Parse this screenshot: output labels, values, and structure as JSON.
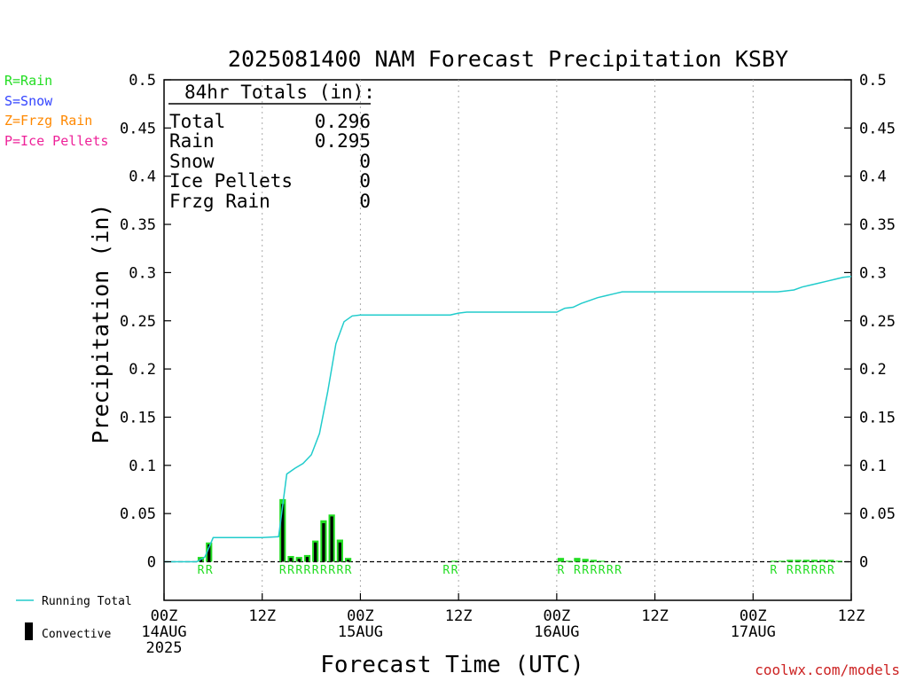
{
  "chart_data": {
    "type": "bar",
    "title": "2025081400 NAM Forecast Precipitation KSBY",
    "xlabel": "Forecast Time (UTC)",
    "ylabel": "Precipitation (in)",
    "ylim": [
      -0.04,
      0.5
    ],
    "xlim": [
      0,
      84
    ],
    "y_ticks": [
      "0.5",
      "0.45",
      "0.4",
      "0.35",
      "0.3",
      "0.25",
      "0.2",
      "0.15",
      "0.1",
      "0.05",
      "0"
    ],
    "x_ticks": [
      {
        "hour": 0,
        "l1": "00Z",
        "l2": "14AUG",
        "l3": "2025"
      },
      {
        "hour": 12,
        "l1": "12Z",
        "l2": "",
        "l3": ""
      },
      {
        "hour": 24,
        "l1": "00Z",
        "l2": "15AUG",
        "l3": ""
      },
      {
        "hour": 36,
        "l1": "12Z",
        "l2": "",
        "l3": ""
      },
      {
        "hour": 48,
        "l1": "00Z",
        "l2": "16AUG",
        "l3": ""
      },
      {
        "hour": 60,
        "l1": "12Z",
        "l2": "",
        "l3": ""
      },
      {
        "hour": 72,
        "l1": "00Z",
        "l2": "17AUG",
        "l3": ""
      },
      {
        "hour": 84,
        "l1": "12Z",
        "l2": "",
        "l3": ""
      }
    ],
    "grid": "vertical dotted at 12-hour intervals",
    "legend_ptype": [
      {
        "text": "R=Rain",
        "color": "#22dd22"
      },
      {
        "text": "S=Snow",
        "color": "#3344ff"
      },
      {
        "text": "Z=Frzg Rain",
        "color": "#ff8800"
      },
      {
        "text": "P=Ice Pellets",
        "color": "#ee2299"
      }
    ],
    "legend_bottom": {
      "running_total": "Running Total",
      "convective": "Convective"
    },
    "totals_box": {
      "header": "84hr Totals (in):",
      "rows": [
        {
          "label": "Total",
          "value": "0.296"
        },
        {
          "label": "Rain",
          "value": "0.295"
        },
        {
          "label": "Snow",
          "value": "0"
        },
        {
          "label": "Ice Pellets",
          "value": "0"
        },
        {
          "label": "Frzg Rain",
          "value": "0"
        }
      ]
    },
    "series": [
      {
        "name": "Precipitation",
        "hours": [
          5,
          6,
          15,
          16,
          17,
          18,
          19,
          20,
          21,
          22,
          23,
          36,
          49,
          50,
          51,
          52,
          53,
          54,
          75,
          76,
          77,
          78,
          79,
          80,
          81,
          82,
          83
        ],
        "values": [
          0.005,
          0.02,
          0.065,
          0.006,
          0.005,
          0.007,
          0.022,
          0.043,
          0.049,
          0.023,
          0.004,
          0.001,
          0.004,
          0.001,
          0.004,
          0.003,
          0.002,
          0.001,
          0.001,
          0.001,
          0.002,
          0.002,
          0.002,
          0.002,
          0.002,
          0.002,
          0.001
        ],
        "convective": [
          0.003,
          0.018,
          0.06,
          0.004,
          0.003,
          0.005,
          0.02,
          0.04,
          0.047,
          0.02,
          0.002,
          0,
          0,
          0,
          0,
          0,
          0,
          0,
          0,
          0,
          0,
          0,
          0,
          0,
          0,
          0,
          0
        ]
      },
      {
        "name": "Running Total",
        "hours": [
          0,
          4,
          5,
          6,
          7,
          12,
          14,
          15,
          16,
          17,
          18,
          19,
          20,
          21,
          22,
          23,
          24,
          35,
          36,
          37,
          48,
          49,
          50,
          51,
          52,
          53,
          54,
          55,
          56,
          75,
          76,
          77,
          78,
          79,
          80,
          81,
          82,
          83,
          84
        ],
        "values": [
          0,
          0,
          0.005,
          0.025,
          0.025,
          0.025,
          0.026,
          0.091,
          0.097,
          0.102,
          0.111,
          0.133,
          0.176,
          0.226,
          0.249,
          0.255,
          0.256,
          0.256,
          0.258,
          0.259,
          0.259,
          0.263,
          0.264,
          0.268,
          0.271,
          0.274,
          0.276,
          0.278,
          0.28,
          0.28,
          0.281,
          0.282,
          0.285,
          0.287,
          0.289,
          0.291,
          0.293,
          0.295,
          0.296
        ]
      }
    ],
    "ptype_marks": [
      {
        "hour": 5,
        "text": "R"
      },
      {
        "hour": 6,
        "text": "R"
      },
      {
        "hour": 15,
        "text": "R"
      },
      {
        "hour": 16,
        "text": "R"
      },
      {
        "hour": 17,
        "text": "R"
      },
      {
        "hour": 18,
        "text": "R"
      },
      {
        "hour": 19,
        "text": "R"
      },
      {
        "hour": 20,
        "text": "R"
      },
      {
        "hour": 21,
        "text": "R"
      },
      {
        "hour": 22,
        "text": "R"
      },
      {
        "hour": 23,
        "text": "R"
      },
      {
        "hour": 35,
        "text": "R"
      },
      {
        "hour": 36,
        "text": "R"
      },
      {
        "hour": 49,
        "text": "R"
      },
      {
        "hour": 51,
        "text": "R"
      },
      {
        "hour": 52,
        "text": "R"
      },
      {
        "hour": 53,
        "text": "R"
      },
      {
        "hour": 54,
        "text": "R"
      },
      {
        "hour": 55,
        "text": "R"
      },
      {
        "hour": 56,
        "text": "R"
      },
      {
        "hour": 75,
        "text": "R"
      },
      {
        "hour": 77,
        "text": "R"
      },
      {
        "hour": 78,
        "text": "R"
      },
      {
        "hour": 79,
        "text": "R"
      },
      {
        "hour": 80,
        "text": "R"
      },
      {
        "hour": 81,
        "text": "R"
      },
      {
        "hour": 82,
        "text": "R"
      }
    ],
    "colors": {
      "bar": "#22dd22",
      "convective": "#000000",
      "running_total": "#22cccc",
      "rain_mark": "#22dd22",
      "credit": "#cc2222"
    }
  },
  "credit": "coolwx.com/models"
}
